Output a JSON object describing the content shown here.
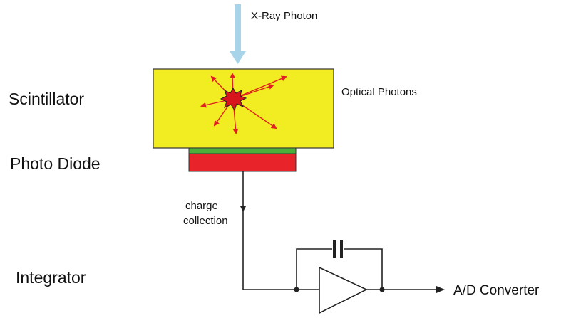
{
  "labels": {
    "xray": "X-Ray Photon",
    "optical": "Optical Photons",
    "scintillator": "Scintillator",
    "photodiode": "Photo Diode",
    "charge_line1": "charge",
    "charge_line2": "collection",
    "integrator": "Integrator",
    "output": "A/D Converter"
  },
  "colors": {
    "scintillator": "#f2ec22",
    "diode_top": "#4caf3a",
    "diode_body": "#e8232a",
    "xray_arrow": "#a8d4ea",
    "optical_arrows": "#e02020",
    "burst": "#d8141c"
  },
  "icons": {
    "burst": "starburst-icon",
    "capacitor": "capacitor-icon",
    "amplifier": "op-amp-triangle-icon"
  }
}
